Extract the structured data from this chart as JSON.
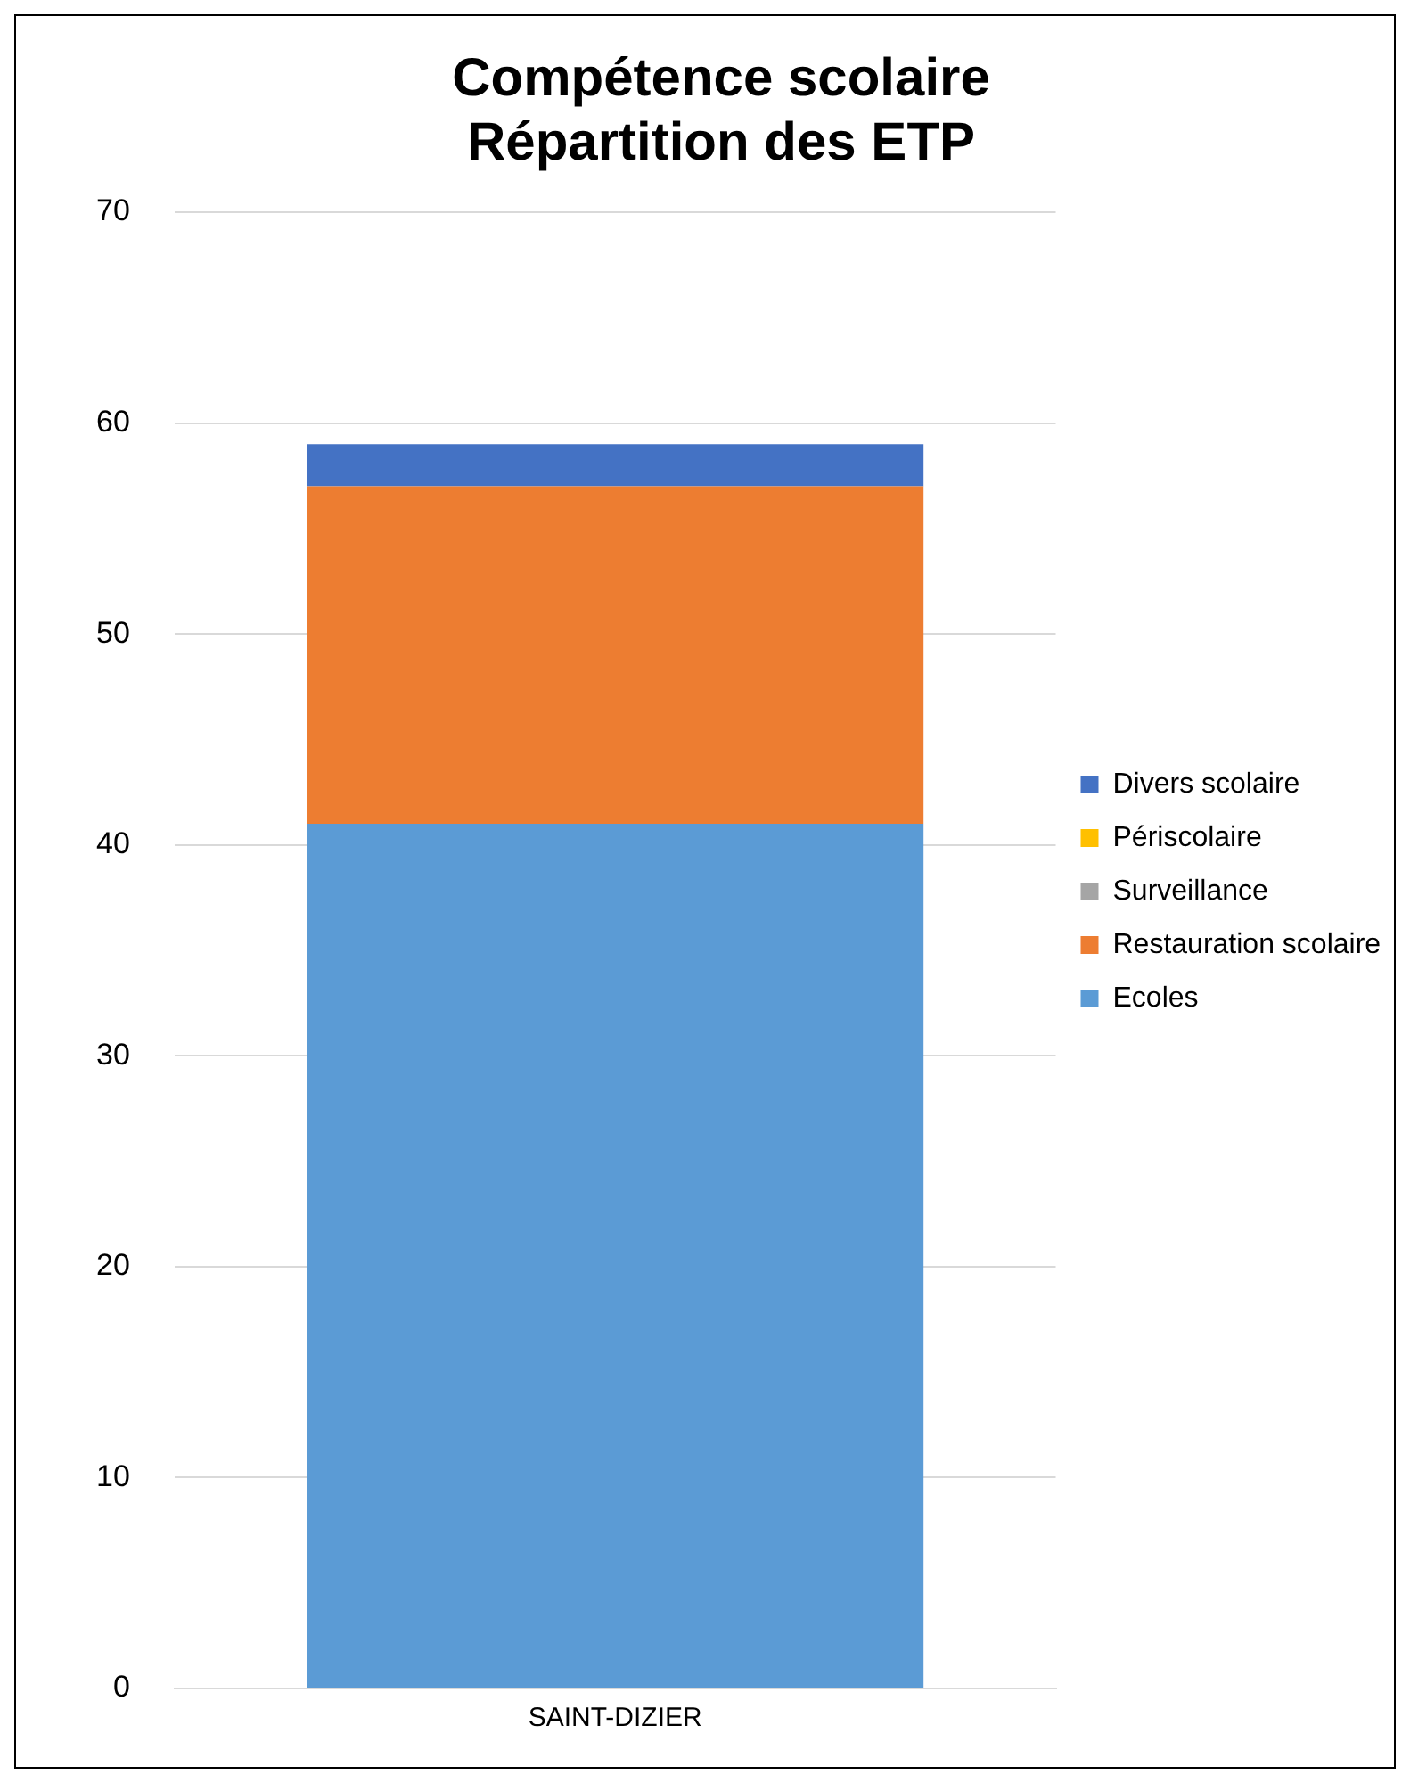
{
  "chart_data": {
    "type": "bar",
    "title": "Compétence scolaire",
    "subtitle": "Répartition des ETP",
    "categories": [
      "SAINT-DIZIER"
    ],
    "stacked": true,
    "series": [
      {
        "name": "Ecoles",
        "color": "#5b9bd5",
        "values": [
          41
        ]
      },
      {
        "name": "Restauration scolaire",
        "color": "#ed7d31",
        "values": [
          16
        ]
      },
      {
        "name": "Surveillance",
        "color": "#a5a5a5",
        "values": [
          0
        ]
      },
      {
        "name": "Périscolaire",
        "color": "#ffc000",
        "values": [
          0
        ]
      },
      {
        "name": "Divers scolaire",
        "color": "#4472c4",
        "values": [
          2
        ]
      }
    ],
    "ylim": [
      0,
      70
    ],
    "yticks": [
      0,
      10,
      20,
      30,
      40,
      50,
      60,
      70
    ],
    "grid": "y",
    "legend": "right"
  }
}
